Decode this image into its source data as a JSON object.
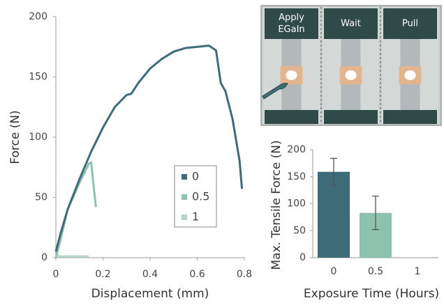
{
  "chart_data": [
    {
      "type": "line",
      "x_label": "Displacement (mm)",
      "y_label": "Force (N)",
      "xlim": [
        0,
        0.8
      ],
      "xticks": [
        0,
        0.2,
        0.4,
        0.6,
        0.8
      ],
      "ylim": [
        0,
        200
      ],
      "yticks": [
        0,
        50,
        100,
        150,
        200
      ],
      "grid": false,
      "legend": "center",
      "series": [
        {
          "name": "0",
          "color": "#3d6b78",
          "x": [
            0,
            0.02,
            0.05,
            0.1,
            0.15,
            0.2,
            0.25,
            0.3,
            0.32,
            0.35,
            0.4,
            0.45,
            0.5,
            0.55,
            0.6,
            0.65,
            0.68,
            0.7,
            0.72,
            0.75,
            0.78,
            0.79
          ],
          "values": [
            5,
            20,
            40,
            65,
            88,
            108,
            125,
            135,
            136,
            145,
            157,
            165,
            171,
            174,
            175,
            176,
            172,
            145,
            138,
            115,
            80,
            57
          ]
        },
        {
          "name": "0.5",
          "color": "#8cc2ae",
          "x": [
            0,
            0.02,
            0.05,
            0.1,
            0.14,
            0.15,
            0.16,
            0.17
          ],
          "values": [
            0,
            15,
            40,
            62,
            78,
            79,
            60,
            42
          ]
        },
        {
          "name": "1",
          "color": "#b5d6c4",
          "x": [
            0,
            0.02,
            0.07,
            0.14
          ],
          "values": [
            2,
            1,
            1,
            1
          ]
        }
      ]
    },
    {
      "type": "bar",
      "x_label": "Exposure Time (Hours)",
      "y_label": "Max. Tensile Force (N)",
      "categories": [
        "0",
        "0.5",
        "1"
      ],
      "values": [
        159,
        83,
        0
      ],
      "errors": [
        25,
        31,
        null
      ],
      "colors": [
        "#3d6b78",
        "#8cc2ae",
        "#b5d6c4"
      ],
      "ylim": [
        0,
        200
      ],
      "yticks": [
        0,
        50,
        100,
        150,
        200
      ],
      "grid": false
    }
  ],
  "illustration": {
    "panels": [
      {
        "label": [
          "Apply",
          "EGaIn"
        ]
      },
      {
        "label": [
          "Wait"
        ]
      },
      {
        "label": [
          "Pull"
        ]
      }
    ]
  }
}
